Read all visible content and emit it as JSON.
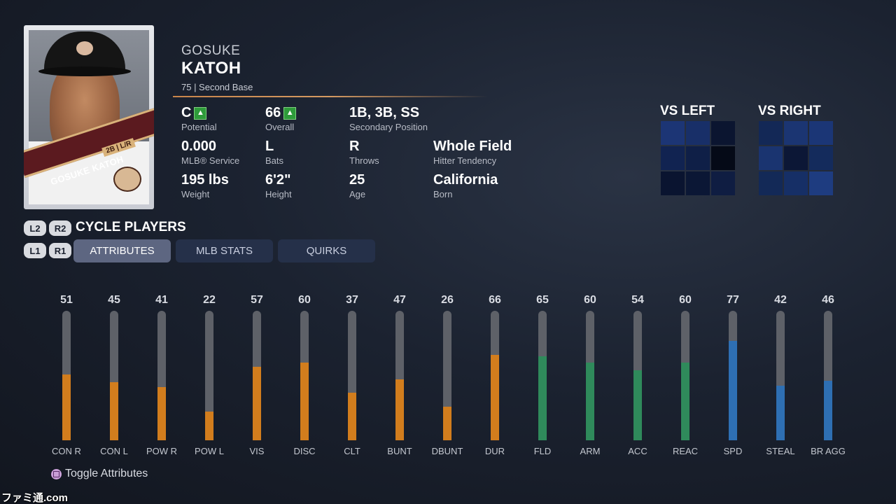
{
  "player": {
    "first_name": "GOSUKE",
    "last_name": "KATOH",
    "subline": "75 | Second Base",
    "card_name": "GOSUKE KATOH",
    "card_position": "2B | L/R"
  },
  "stats": [
    {
      "value": "C",
      "label": "Potential",
      "arrow": true
    },
    {
      "value": "66",
      "label": "Overall",
      "arrow": true
    },
    {
      "value": "1B, 3B, SS",
      "label": "Secondary Position"
    },
    {
      "value": "0.000",
      "label": "MLB® Service"
    },
    {
      "value": "L",
      "label": "Bats"
    },
    {
      "value": "R",
      "label": "Throws"
    },
    {
      "value": "Whole Field",
      "label": "Hitter Tendency"
    },
    {
      "value": "195 lbs",
      "label": "Weight"
    },
    {
      "value": "6'2\"",
      "label": "Height"
    },
    {
      "value": "25",
      "label": "Age"
    },
    {
      "value": "California",
      "label": "Born"
    }
  ],
  "vs_left": {
    "title": "VS LEFT",
    "cells": [
      "#1c3575",
      "#182f68",
      "#0b1530",
      "#112351",
      "#0f1f47",
      "#050a17",
      "#0a1430",
      "#0b1735",
      "#0f1d42"
    ]
  },
  "vs_right": {
    "title": "VS RIGHT",
    "cells": [
      "#132856",
      "#1b3572",
      "#1b3676",
      "#1a3470",
      "#0c1736",
      "#142b5c",
      "#132957",
      "#162f66",
      "#1e3c80"
    ]
  },
  "cycle": {
    "l2": "L2",
    "r2": "R2",
    "label": "CYCLE PLAYERS",
    "l1": "L1",
    "r1": "R1"
  },
  "tabs": [
    {
      "label": "ATTRIBUTES",
      "active": true
    },
    {
      "label": "MLB STATS",
      "active": false
    },
    {
      "label": "QUIRKS",
      "active": false
    }
  ],
  "attributes": [
    {
      "label": "CON R",
      "value": 51,
      "color": "#d27d1d"
    },
    {
      "label": "CON L",
      "value": 45,
      "color": "#d27d1d"
    },
    {
      "label": "POW R",
      "value": 41,
      "color": "#d27d1d"
    },
    {
      "label": "POW L",
      "value": 22,
      "color": "#d27d1d"
    },
    {
      "label": "VIS",
      "value": 57,
      "color": "#d27d1d"
    },
    {
      "label": "DISC",
      "value": 60,
      "color": "#d27d1d"
    },
    {
      "label": "CLT",
      "value": 37,
      "color": "#d27d1d"
    },
    {
      "label": "BUNT",
      "value": 47,
      "color": "#d27d1d"
    },
    {
      "label": "DBUNT",
      "value": 26,
      "color": "#d27d1d"
    },
    {
      "label": "DUR",
      "value": 66,
      "color": "#d27d1d"
    },
    {
      "label": "FLD",
      "value": 65,
      "color": "#2f8a5b"
    },
    {
      "label": "ARM",
      "value": 60,
      "color": "#2f8a5b"
    },
    {
      "label": "ACC",
      "value": 54,
      "color": "#2f8a5b"
    },
    {
      "label": "REAC",
      "value": 60,
      "color": "#2f8a5b"
    },
    {
      "label": "SPD",
      "value": 77,
      "color": "#2e6fb3"
    },
    {
      "label": "STEAL",
      "value": 42,
      "color": "#2e6fb3"
    },
    {
      "label": "BR AGG",
      "value": 46,
      "color": "#2e6fb3"
    }
  ],
  "toggle_label": "Toggle Attributes",
  "watermark": "ファミ通.com"
}
